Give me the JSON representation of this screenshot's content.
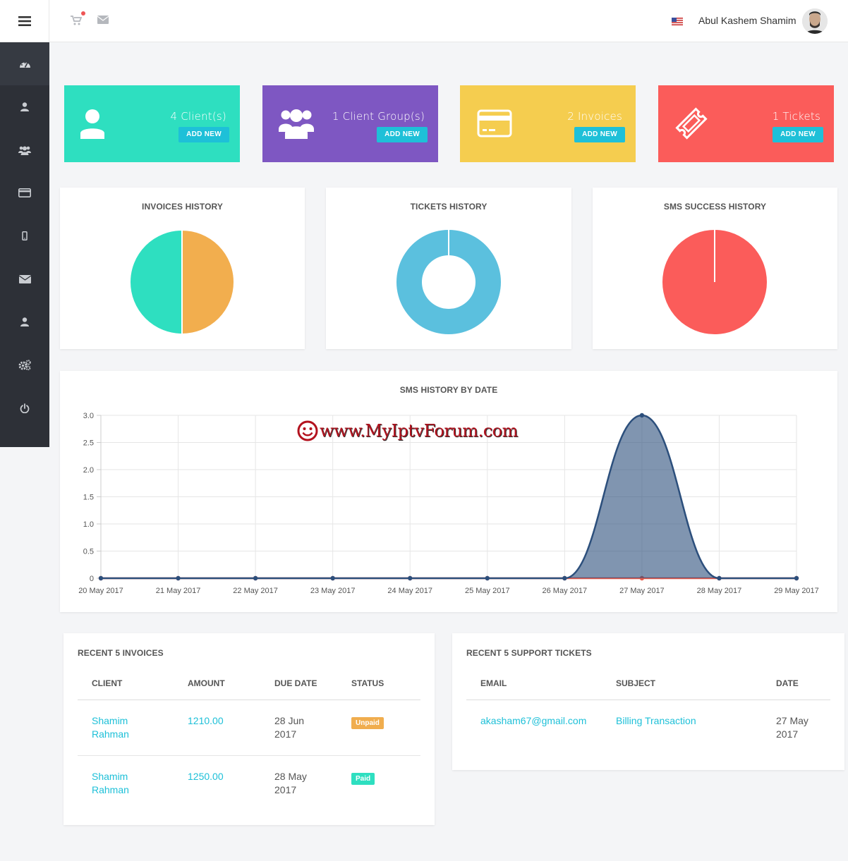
{
  "header": {
    "user_name": "Abul Kashem Shamim",
    "flag": "us-flag",
    "icons": [
      "menu-icon",
      "cart-icon",
      "mail-icon"
    ]
  },
  "sidebar": {
    "items": [
      {
        "icon": "dashboard-icon"
      },
      {
        "icon": "user-icon"
      },
      {
        "icon": "users-icon"
      },
      {
        "icon": "credit-card-icon"
      },
      {
        "icon": "mobile-icon"
      },
      {
        "icon": "envelope-icon"
      },
      {
        "icon": "user-icon"
      },
      {
        "icon": "cogs-icon"
      },
      {
        "icon": "power-icon"
      }
    ]
  },
  "stats": [
    {
      "label": "4 Client(s)",
      "button": "ADD NEW",
      "color": "#2edfc0",
      "icon": "user-icon"
    },
    {
      "label": "1 Client Group(s)",
      "button": "ADD NEW",
      "color": "#7e57c2",
      "icon": "users-icon"
    },
    {
      "label": "2 Invoices",
      "button": "ADD NEW",
      "color": "#f5cd4f",
      "icon": "credit-card-icon"
    },
    {
      "label": "1 Tickets",
      "button": "ADD NEW",
      "color": "#fb5c5a",
      "icon": "ticket-icon"
    }
  ],
  "pies": [
    {
      "title": "INVOICES HISTORY",
      "type": "pie",
      "slices": [
        {
          "value": 1,
          "color": "#f2ae4e"
        },
        {
          "value": 1,
          "color": "#2edfc0"
        }
      ]
    },
    {
      "title": "TICKETS HISTORY",
      "type": "doughnut",
      "slices": [
        {
          "value": 1,
          "color": "#5bc0de"
        }
      ]
    },
    {
      "title": "SMS SUCCESS HISTORY",
      "type": "pie",
      "slices": [
        {
          "value": 1,
          "color": "#fb5c5a"
        }
      ]
    }
  ],
  "chart_data": {
    "type": "area",
    "title": "SMS HISTORY BY DATE",
    "categories": [
      "20 May 2017",
      "21 May 2017",
      "22 May 2017",
      "23 May 2017",
      "24 May 2017",
      "25 May 2017",
      "26 May 2017",
      "27 May 2017",
      "28 May 2017",
      "29 May 2017"
    ],
    "series": [
      {
        "values": [
          0,
          0,
          0,
          0,
          0,
          0,
          0,
          3,
          0,
          0
        ],
        "color": "#2c4f7c"
      },
      {
        "values": [
          0,
          0,
          0,
          0,
          0,
          0,
          0,
          0,
          0,
          0
        ],
        "color": "#e55b4c"
      }
    ],
    "ylim": [
      0,
      3
    ],
    "yticks": [
      "0",
      "0.5",
      "1.0",
      "1.5",
      "2.0",
      "2.5",
      "3.0"
    ],
    "grid": true,
    "watermark": "www.MyIptvForum.com"
  },
  "invoices": {
    "title": "RECENT 5 INVOICES",
    "headers": [
      "CLIENT",
      "AMOUNT",
      "DUE DATE",
      "STATUS"
    ],
    "rows": [
      {
        "client_1": "Shamim",
        "client_2": "Rahman",
        "amount": "1210.00",
        "due_1": "28 Jun",
        "due_2": "2017",
        "status": "Unpaid"
      },
      {
        "client_1": "Shamim",
        "client_2": "Rahman",
        "amount": "1250.00",
        "due_1": "28 May",
        "due_2": "2017",
        "status": "Paid"
      }
    ]
  },
  "tickets": {
    "title": "RECENT 5 SUPPORT TICKETS",
    "headers": [
      "EMAIL",
      "SUBJECT",
      "DATE"
    ],
    "rows": [
      {
        "email": "akasham67@gmail.com",
        "subject": "Billing Transaction",
        "date_1": "27 May",
        "date_2": "2017"
      }
    ]
  }
}
